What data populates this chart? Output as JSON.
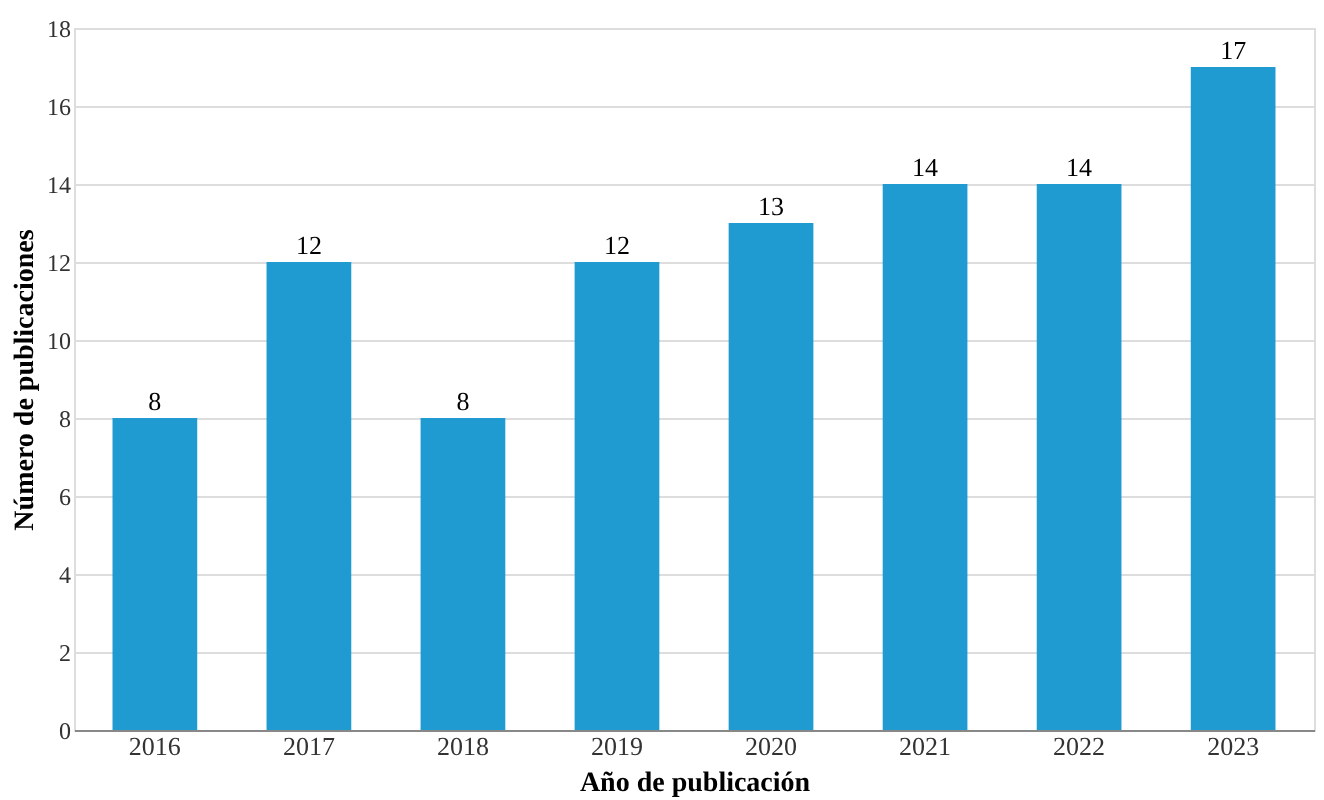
{
  "chart_data": {
    "type": "bar",
    "xlabel": "Año de publicación",
    "ylabel": "Número de publicaciones",
    "categories": [
      "2016",
      "2017",
      "2018",
      "2019",
      "2020",
      "2021",
      "2022",
      "2023"
    ],
    "values": [
      8,
      12,
      8,
      12,
      13,
      14,
      14,
      17
    ],
    "color": "#1f9bd1",
    "ylim": [
      0,
      18
    ],
    "yticks": [
      0,
      2,
      4,
      6,
      8,
      10,
      12,
      14,
      16,
      18
    ],
    "grid": "y",
    "data_labels": true
  }
}
